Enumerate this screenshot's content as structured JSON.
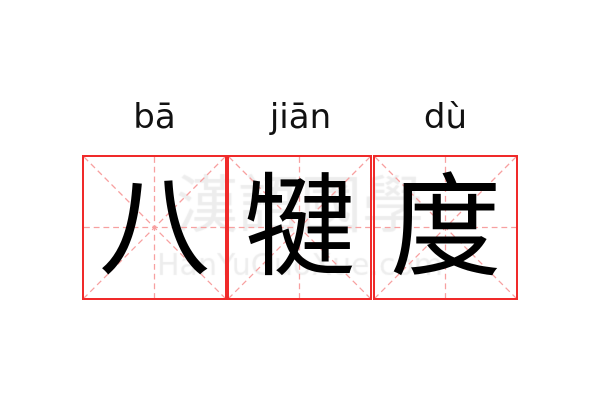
{
  "entries": [
    {
      "pinyin": "bā",
      "character": "八"
    },
    {
      "pinyin": "jiān",
      "character": "犍"
    },
    {
      "pinyin": "dù",
      "character": "度"
    }
  ],
  "watermark": {
    "chinese": "漢語國學",
    "latin": "HanYuGuoXue.com"
  },
  "colors": {
    "grid_border": "#f02a2a",
    "grid_guides": "#f7a0a0",
    "watermark": "#e6e6e6"
  }
}
